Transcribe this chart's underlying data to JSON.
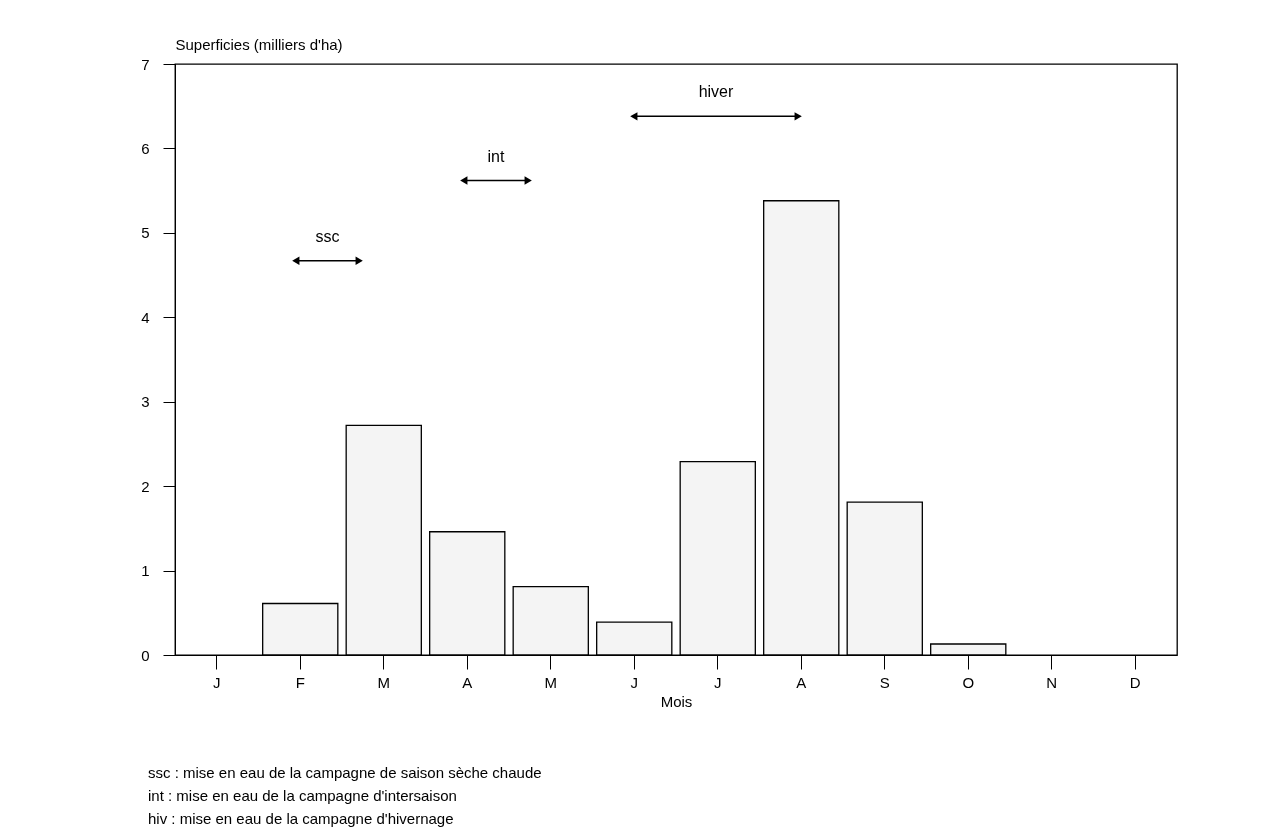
{
  "chart_data": {
    "type": "bar",
    "categories": [
      "J",
      "F",
      "M",
      "A",
      "M",
      "J",
      "J",
      "A",
      "S",
      "O",
      "N",
      "D"
    ],
    "values": [
      null,
      0.61,
      2.72,
      1.46,
      0.81,
      0.39,
      2.29,
      5.38,
      1.81,
      0.13,
      null,
      null
    ],
    "color": "#f4f4f4",
    "xlabel": "Mois",
    "ylabel": "Superficies (milliers d'ha)",
    "ylim": [
      0,
      7
    ],
    "yticks": [
      0,
      1,
      2,
      3,
      4,
      5,
      6,
      7
    ],
    "grid": false,
    "annotations": [
      "ssc",
      "int",
      "hiver",
      "ssc : mise en eau de la campagne de saison sèche chaude",
      "int : mise en eau de la campagne d'intersaison",
      "hiv : mise en eau de la campagne d'hivernage"
    ]
  }
}
